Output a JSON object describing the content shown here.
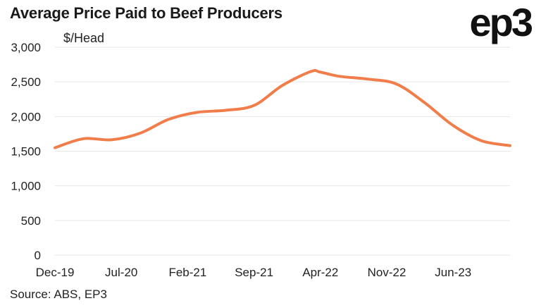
{
  "header": {
    "title": "Average Price Paid to Beef Producers",
    "logo_text": "ep3"
  },
  "footer": {
    "source": "Source: ABS, EP3"
  },
  "chart_data": {
    "type": "line",
    "title": "Average Price Paid to Beef Producers",
    "ylabel": "$/Head",
    "xlabel": "",
    "ylim": [
      0,
      3000
    ],
    "yticks": [
      0,
      500,
      1000,
      1500,
      2000,
      2500,
      3000
    ],
    "ytick_labels": [
      "0",
      "500",
      "1,000",
      "1,500",
      "2,000",
      "2,500",
      "3,000"
    ],
    "xticks": [
      "Dec-19",
      "Jul-20",
      "Feb-21",
      "Sep-21",
      "Apr-22",
      "Nov-22",
      "Jun-23"
    ],
    "grid": true,
    "line_color": "#f07d4a",
    "series": [
      {
        "x": [
          "Dec-19",
          "Mar-20",
          "Jun-20",
          "Sep-20",
          "Dec-20",
          "Mar-21",
          "Jun-21",
          "Sep-21",
          "Dec-21",
          "Mar-22",
          "Apr-22",
          "Jun-22",
          "Sep-22",
          "Dec-22",
          "Mar-23",
          "Jun-23",
          "Sep-23",
          "Dec-23"
        ],
        "values": [
          1550,
          1680,
          1665,
          1760,
          1960,
          2060,
          2090,
          2160,
          2450,
          2650,
          2640,
          2580,
          2540,
          2470,
          2200,
          1870,
          1650,
          1580
        ]
      }
    ]
  }
}
